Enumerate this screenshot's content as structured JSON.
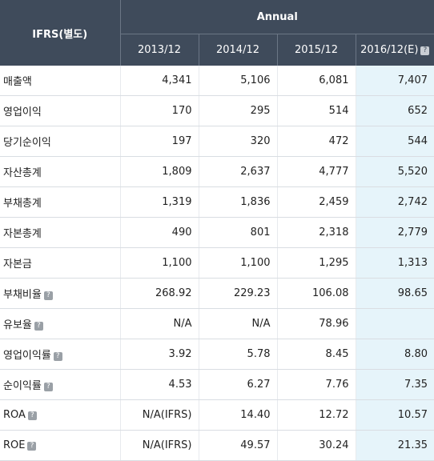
{
  "header": {
    "corner": "IFRS(별도)",
    "group": "Annual",
    "years": [
      "2013/12",
      "2014/12",
      "2015/12",
      "2016/12(E)"
    ]
  },
  "rows": [
    {
      "label": "매출액",
      "help": false,
      "values": [
        "4,341",
        "5,106",
        "6,081",
        "7,407"
      ]
    },
    {
      "label": "영업이익",
      "help": false,
      "values": [
        "170",
        "295",
        "514",
        "652"
      ]
    },
    {
      "label": "당기순이익",
      "help": false,
      "values": [
        "197",
        "320",
        "472",
        "544"
      ]
    },
    {
      "label": "자산총계",
      "help": false,
      "values": [
        "1,809",
        "2,637",
        "4,777",
        "5,520"
      ]
    },
    {
      "label": "부채총계",
      "help": false,
      "values": [
        "1,319",
        "1,836",
        "2,459",
        "2,742"
      ]
    },
    {
      "label": "자본총계",
      "help": false,
      "values": [
        "490",
        "801",
        "2,318",
        "2,779"
      ]
    },
    {
      "label": "자본금",
      "help": false,
      "values": [
        "1,100",
        "1,100",
        "1,295",
        "1,313"
      ]
    },
    {
      "label": "부채비율",
      "help": true,
      "values": [
        "268.92",
        "229.23",
        "106.08",
        "98.65"
      ]
    },
    {
      "label": "유보율",
      "help": true,
      "values": [
        "N/A",
        "N/A",
        "78.96",
        ""
      ]
    },
    {
      "label": "영업이익률",
      "help": true,
      "values": [
        "3.92",
        "5.78",
        "8.45",
        "8.80"
      ]
    },
    {
      "label": "순이익률",
      "help": true,
      "values": [
        "4.53",
        "6.27",
        "7.76",
        "7.35"
      ]
    },
    {
      "label": "ROA",
      "help": true,
      "values": [
        "N/A(IFRS)",
        "14.40",
        "12.72",
        "10.57"
      ]
    },
    {
      "label": "ROE",
      "help": true,
      "values": [
        "N/A(IFRS)",
        "49.57",
        "30.24",
        "21.35"
      ]
    }
  ],
  "icons": {
    "help": "help-icon"
  },
  "colors": {
    "header_bg": "#3f4b5b",
    "estimate_bg": "#e6f4fa"
  }
}
